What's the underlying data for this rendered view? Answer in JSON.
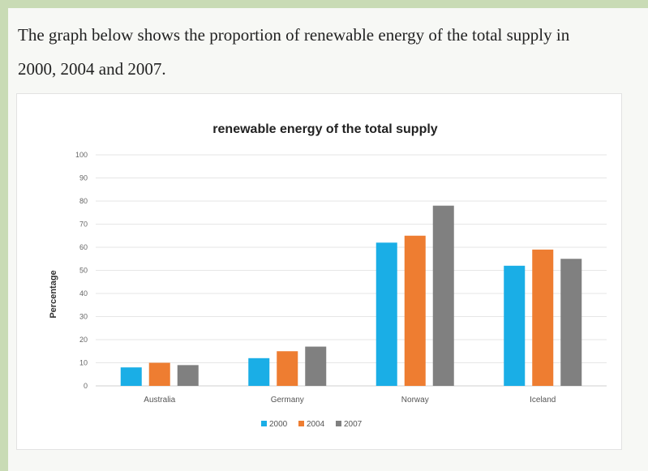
{
  "intro": {
    "line1": "The graph below shows the proportion of renewable energy of the total supply in",
    "line2": "2000, 2004 and 2007."
  },
  "chart_data": {
    "type": "bar",
    "title": "renewable energy of the total supply",
    "xlabel": "",
    "ylabel": "Percentage",
    "categories": [
      "Australia",
      "Germany",
      "Norway",
      "Iceland"
    ],
    "ylim": [
      0,
      100
    ],
    "yticks": [
      0,
      10,
      20,
      30,
      40,
      50,
      60,
      70,
      80,
      90,
      100
    ],
    "grid": true,
    "legend_position": "bottom",
    "series": [
      {
        "name": "2000",
        "color": "#1aaee6",
        "values": [
          8,
          12,
          62,
          52
        ]
      },
      {
        "name": "2004",
        "color": "#ee7d31",
        "values": [
          10,
          15,
          65,
          59
        ]
      },
      {
        "name": "2007",
        "color": "#808080",
        "values": [
          9,
          17,
          78,
          55
        ]
      }
    ]
  }
}
